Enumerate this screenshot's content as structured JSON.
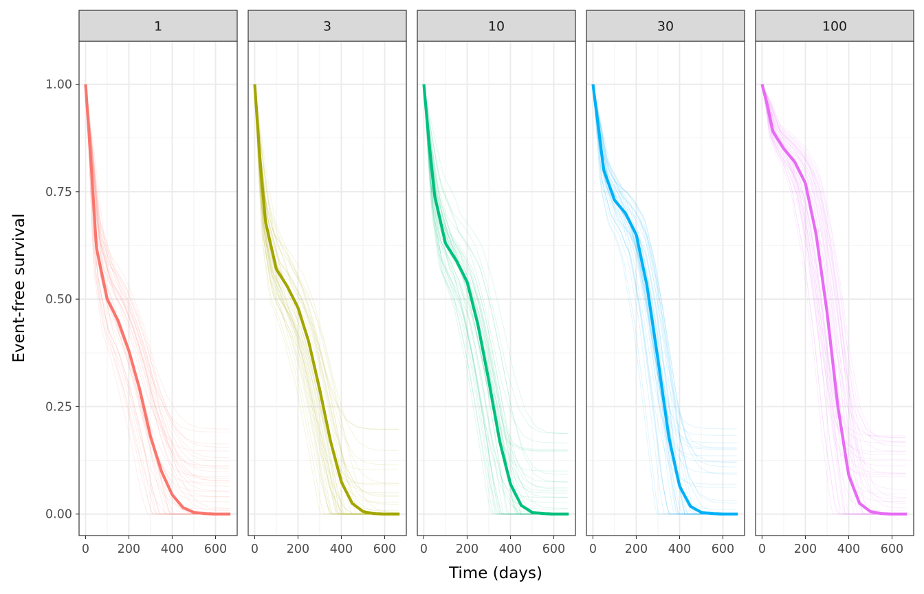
{
  "chart_data": {
    "type": "line",
    "facet_by": "dose",
    "facets": [
      "1",
      "3",
      "10",
      "30",
      "100"
    ],
    "xlabel": "Time (days)",
    "ylabel": "Event-free survival",
    "xlim": [
      -30,
      700
    ],
    "ylim": [
      -0.05,
      1.1
    ],
    "x_ticks": [
      0,
      200,
      400,
      600
    ],
    "y_ticks": [
      0.0,
      0.25,
      0.5,
      0.75,
      1.0
    ],
    "x_tick_labels": [
      "0",
      "200",
      "400",
      "600"
    ],
    "y_tick_labels": [
      "0.00",
      "0.25",
      "0.50",
      "0.75",
      "1.00"
    ],
    "grid": true,
    "theme": "bw",
    "thin_lines_per_panel": 40,
    "thin_line_alpha": 0.12,
    "series": [
      {
        "facet": "1",
        "color": "#F8766D",
        "x": [
          0,
          25,
          50,
          100,
          150,
          200,
          250,
          300,
          350,
          400,
          450,
          500,
          550,
          600,
          670
        ],
        "y": [
          1.0,
          0.82,
          0.62,
          0.5,
          0.45,
          0.38,
          0.29,
          0.18,
          0.1,
          0.045,
          0.015,
          0.004,
          0.001,
          0.0,
          0.0
        ]
      },
      {
        "facet": "3",
        "color": "#A3A500",
        "x": [
          0,
          25,
          50,
          100,
          150,
          200,
          250,
          300,
          350,
          400,
          450,
          500,
          550,
          600,
          670
        ],
        "y": [
          1.0,
          0.82,
          0.68,
          0.57,
          0.53,
          0.48,
          0.4,
          0.29,
          0.17,
          0.075,
          0.025,
          0.006,
          0.001,
          0.0,
          0.0
        ]
      },
      {
        "facet": "10",
        "color": "#00BF7D",
        "x": [
          0,
          25,
          50,
          100,
          150,
          200,
          250,
          300,
          350,
          400,
          450,
          500,
          550,
          600,
          670
        ],
        "y": [
          1.0,
          0.86,
          0.74,
          0.63,
          0.59,
          0.54,
          0.44,
          0.31,
          0.17,
          0.07,
          0.02,
          0.004,
          0.001,
          0.0,
          0.0
        ]
      },
      {
        "facet": "30",
        "color": "#00B0F6",
        "x": [
          0,
          25,
          50,
          100,
          150,
          200,
          250,
          300,
          350,
          400,
          450,
          500,
          550,
          600,
          670
        ],
        "y": [
          1.0,
          0.9,
          0.8,
          0.73,
          0.7,
          0.65,
          0.53,
          0.36,
          0.18,
          0.065,
          0.018,
          0.004,
          0.001,
          0.0,
          0.0
        ]
      },
      {
        "facet": "100",
        "color": "#E76BF3",
        "x": [
          0,
          25,
          50,
          100,
          150,
          200,
          250,
          300,
          350,
          400,
          450,
          500,
          550,
          600,
          670
        ],
        "y": [
          1.0,
          0.95,
          0.89,
          0.85,
          0.82,
          0.77,
          0.65,
          0.47,
          0.25,
          0.09,
          0.025,
          0.006,
          0.001,
          0.0,
          0.0
        ]
      }
    ]
  }
}
